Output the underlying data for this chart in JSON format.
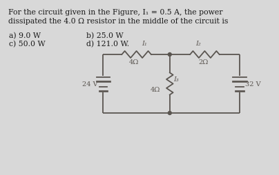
{
  "bg_color": "#d8d8d8",
  "inner_bg": "#f0efee",
  "title_line1": "For the circuit given in the Figure, I₁ = 0.5 A, the power",
  "title_line2": "dissipated the 4.0 Ω resistor in the middle of the circuit is",
  "ans_a": "a) 9.0 W",
  "ans_b": "b) 25.0 W",
  "ans_c": "c) 50.0 W",
  "ans_d": "d) 121.0 W.",
  "voltage_left": "24 V",
  "voltage_right": "32 V",
  "label_4ohm_left": "4Ω",
  "label_2ohm_right": "2Ω",
  "label_4ohm_mid": "4Ω",
  "label_I1": "I₁",
  "label_I2": "I₂",
  "label_I3": "I₃",
  "circuit_color": "#5a5550",
  "text_color": "#1a1a1a"
}
